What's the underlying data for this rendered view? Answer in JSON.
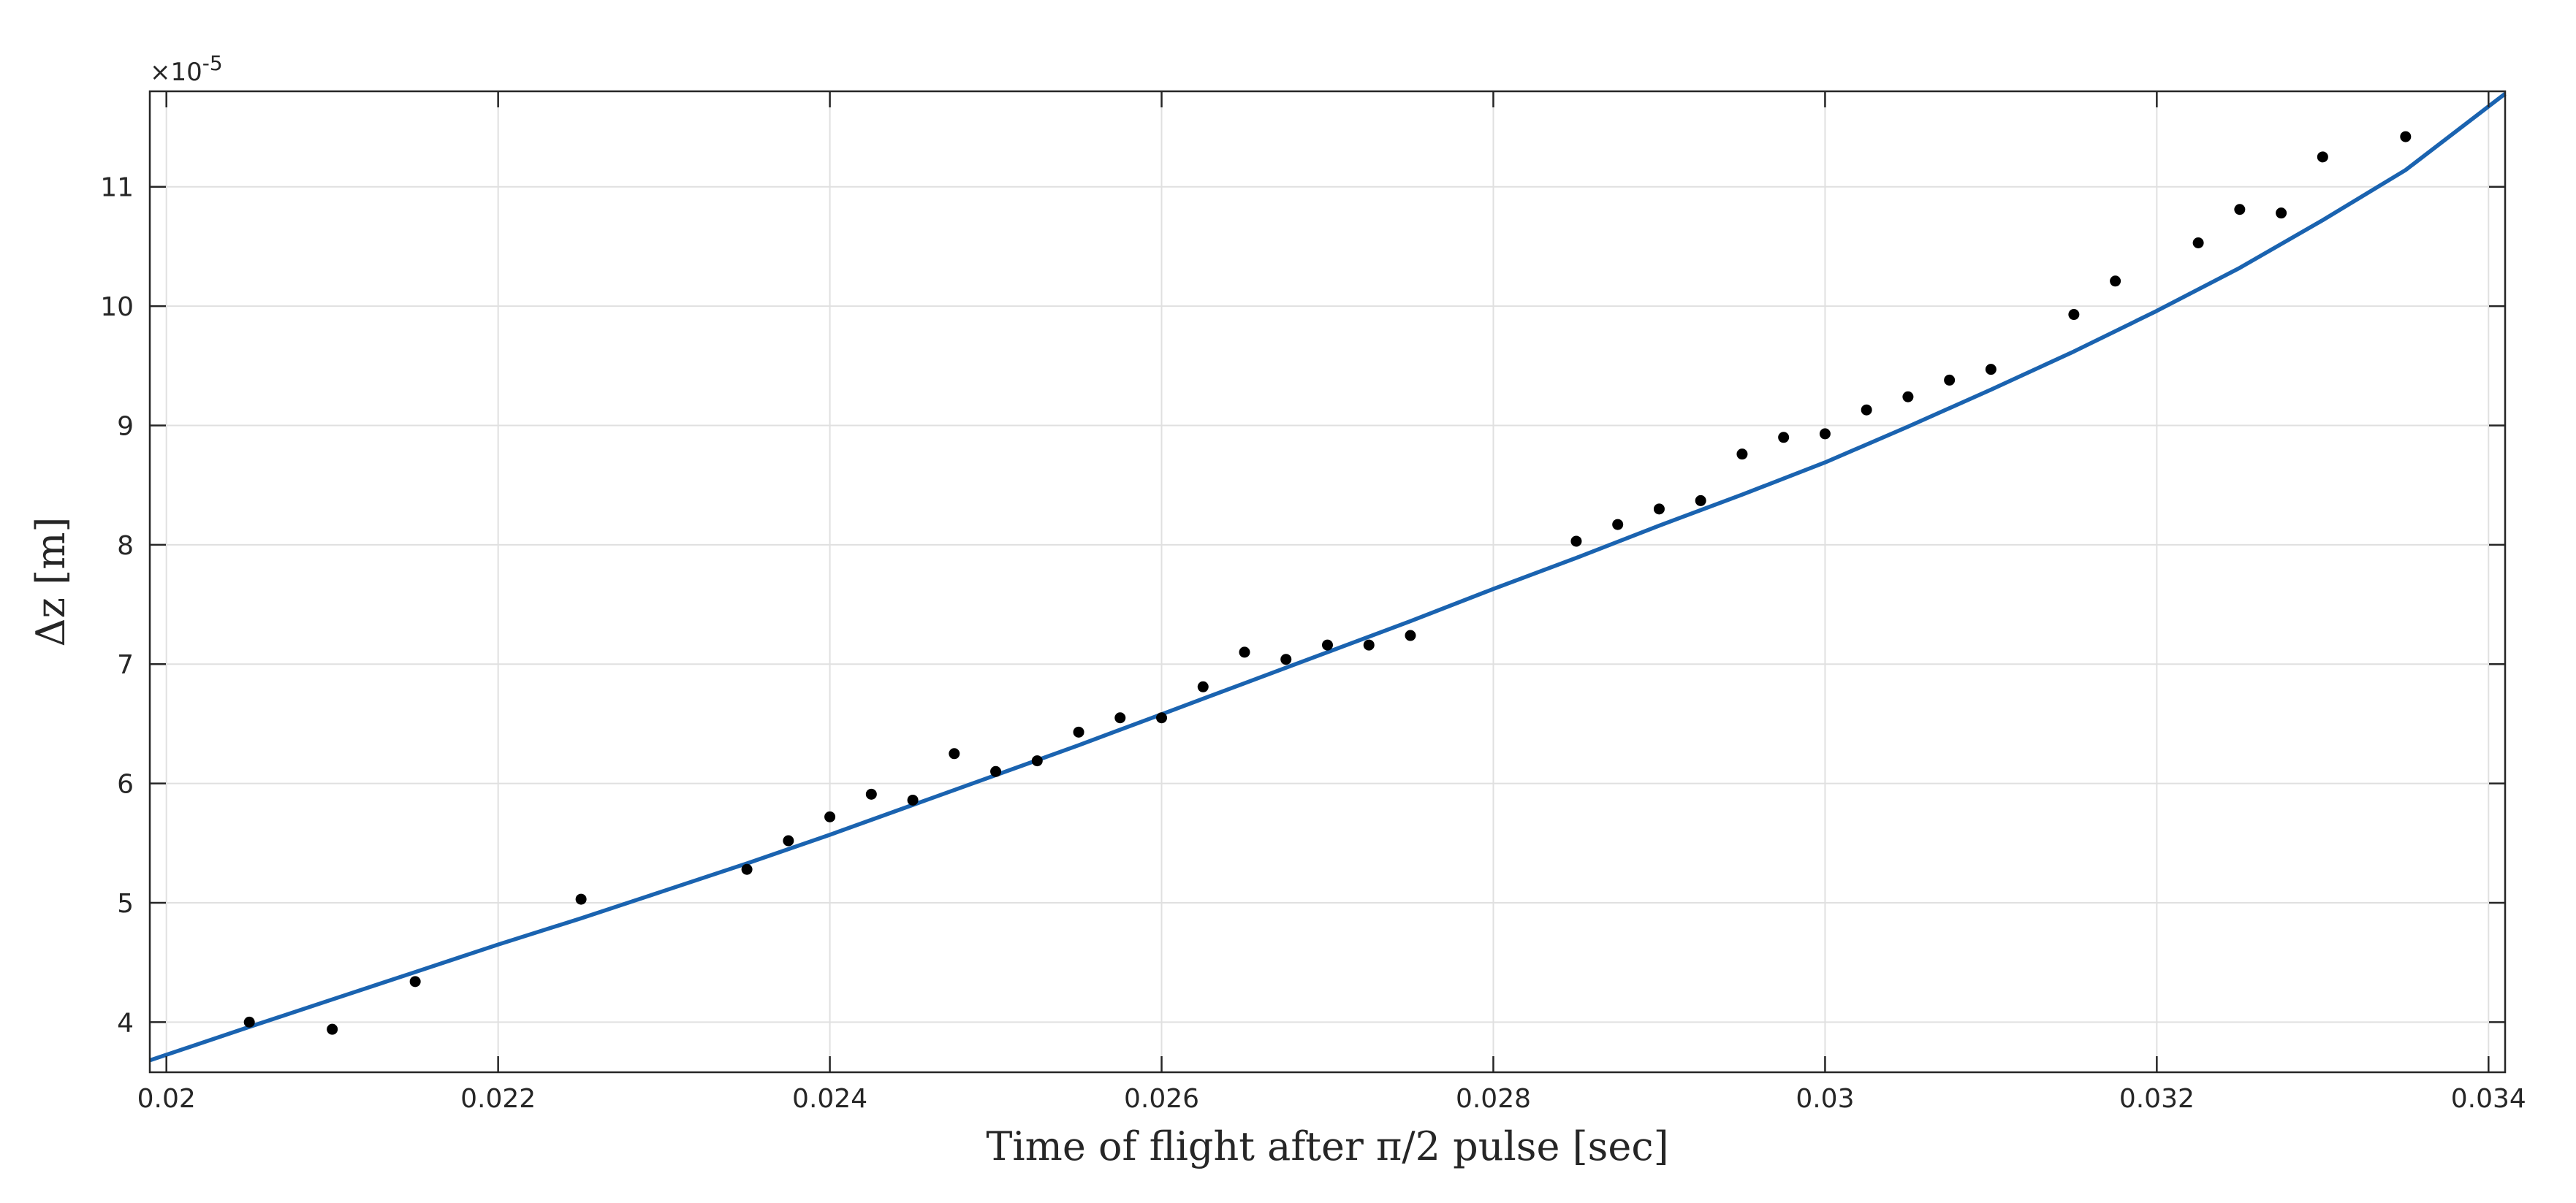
{
  "chart_data": {
    "type": "scatter",
    "title": "",
    "xlabel": "Time of flight after π/2 pulse [sec]",
    "ylabel": "Δz [m]",
    "y_multiplier": "×10",
    "y_multiplier_exp": "-5",
    "xlim": [
      0.0199,
      0.0341
    ],
    "ylim": [
      3.58,
      11.8
    ],
    "xticks": [
      0.02,
      0.022,
      0.024,
      0.026,
      0.028,
      0.03,
      0.032,
      0.034
    ],
    "xtick_labels": [
      "0.02",
      "0.022",
      "0.024",
      "0.026",
      "0.028",
      "0.03",
      "0.032",
      "0.034"
    ],
    "yticks": [
      4,
      5,
      6,
      7,
      8,
      9,
      10,
      11
    ],
    "ytick_labels": [
      "4",
      "5",
      "6",
      "7",
      "8",
      "9",
      "10",
      "11"
    ],
    "grid": true,
    "colors": {
      "points": "#000000",
      "fit": "#1a63b0",
      "grid": "#e0e0e0",
      "axes": "#262626"
    },
    "series": [
      {
        "type": "scatter",
        "x": [
          0.0205,
          0.021,
          0.0215,
          0.0225,
          0.0235,
          0.02375,
          0.024,
          0.02425,
          0.0245,
          0.02475,
          0.025,
          0.02525,
          0.0255,
          0.02575,
          0.026,
          0.02625,
          0.0265,
          0.02675,
          0.027,
          0.02725,
          0.0275,
          0.0285,
          0.02875,
          0.029,
          0.02925,
          0.0295,
          0.02975,
          0.03,
          0.03025,
          0.0305,
          0.03075,
          0.031,
          0.0315,
          0.03175,
          0.03225,
          0.0325,
          0.03275,
          0.033,
          0.0335
        ],
        "y": [
          4.0,
          3.94,
          4.34,
          5.03,
          5.28,
          5.52,
          5.72,
          5.91,
          5.86,
          6.25,
          6.1,
          6.19,
          6.43,
          6.55,
          6.55,
          6.81,
          7.1,
          7.04,
          7.16,
          7.16,
          7.24,
          8.03,
          8.17,
          8.3,
          8.37,
          8.76,
          8.9,
          8.93,
          9.13,
          9.24,
          9.38,
          9.47,
          9.93,
          10.21,
          10.53,
          10.81,
          10.78,
          11.25,
          11.42
        ]
      },
      {
        "type": "line",
        "x": [
          0.0199,
          0.0205,
          0.021,
          0.0215,
          0.022,
          0.0225,
          0.023,
          0.0235,
          0.024,
          0.0245,
          0.025,
          0.0255,
          0.026,
          0.0265,
          0.027,
          0.0275,
          0.028,
          0.0285,
          0.029,
          0.0295,
          0.03,
          0.0305,
          0.031,
          0.0315,
          0.032,
          0.0325,
          0.033,
          0.0335,
          0.0341
        ],
        "y": [
          3.68,
          3.96,
          4.19,
          4.42,
          4.65,
          4.87,
          5.1,
          5.33,
          5.57,
          5.82,
          6.07,
          6.32,
          6.58,
          6.84,
          7.1,
          7.36,
          7.63,
          7.89,
          8.16,
          8.42,
          8.69,
          8.99,
          9.3,
          9.62,
          9.96,
          10.32,
          10.72,
          11.14,
          11.78
        ]
      }
    ]
  }
}
